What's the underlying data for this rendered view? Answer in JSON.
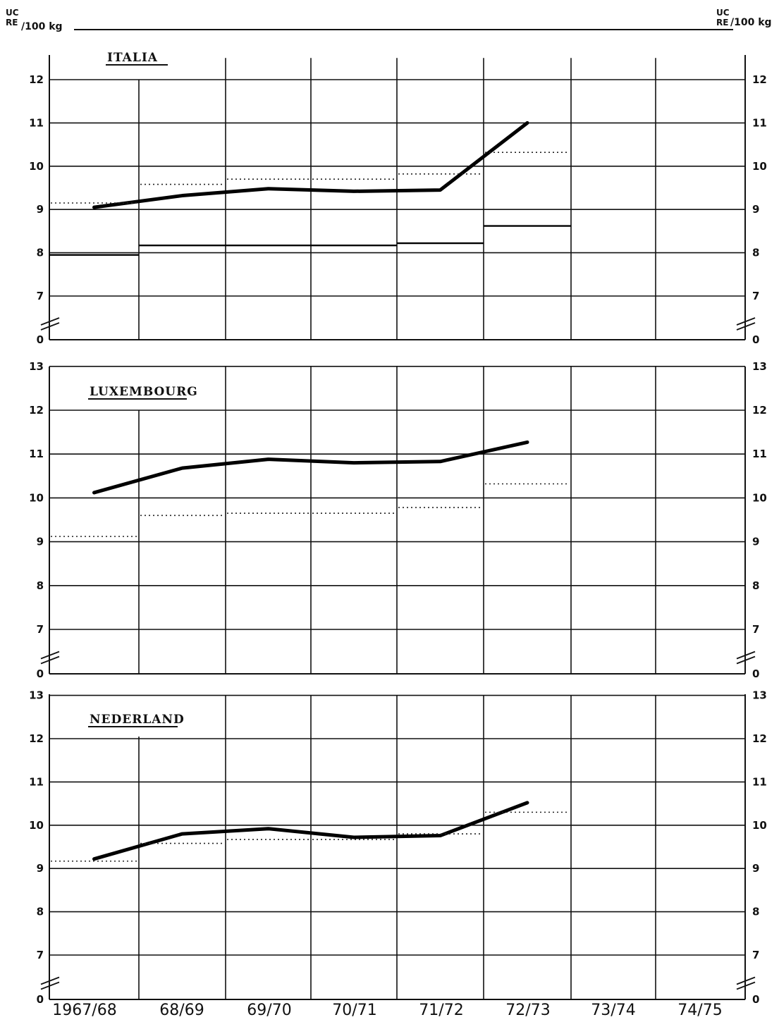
{
  "units": {
    "top": "UC",
    "bottom": "RE",
    "rest": "/100 kg"
  },
  "x_tick_labels": [
    "1967/68",
    "68/69",
    "69/70",
    "70/71",
    "71/72",
    "72/73",
    "73/74",
    "74/75"
  ],
  "chart_data": [
    {
      "type": "line",
      "title": "ITALIA",
      "x": [
        "1967/68",
        "68/69",
        "69/70",
        "70/71",
        "71/72",
        "72/73",
        "73/74",
        "74/75"
      ],
      "ylim": [
        0,
        12.5
      ],
      "axis_break": [
        0,
        6.5
      ],
      "y_ticks": [
        0,
        7,
        8,
        9,
        10,
        11,
        12
      ],
      "grid": true,
      "series": [
        {
          "style": "thick-solid",
          "points": [
            [
              "1967/68",
              9.05
            ],
            [
              "68/69",
              9.32
            ],
            [
              "69/70",
              9.48
            ],
            [
              "70/71",
              9.42
            ],
            [
              "71/72",
              9.45
            ],
            [
              "72/73",
              11.0
            ]
          ]
        },
        {
          "style": "dotted-step",
          "values": [
            9.15,
            9.58,
            9.7,
            9.7,
            9.82,
            10.32,
            null,
            null
          ]
        },
        {
          "style": "thin-solid-step",
          "values": [
            7.95,
            8.17,
            8.17,
            8.17,
            8.22,
            8.62,
            null,
            null
          ]
        }
      ]
    },
    {
      "type": "line",
      "title": "LUXEMBOURG",
      "x": [
        "1967/68",
        "68/69",
        "69/70",
        "70/71",
        "71/72",
        "72/73",
        "73/74",
        "74/75"
      ],
      "ylim": [
        0,
        13
      ],
      "axis_break": [
        0,
        6.5
      ],
      "y_ticks": [
        0,
        7,
        8,
        9,
        10,
        11,
        12,
        13
      ],
      "grid": true,
      "series": [
        {
          "style": "thick-solid",
          "points": [
            [
              "1967/68",
              10.12
            ],
            [
              "68/69",
              10.68
            ],
            [
              "69/70",
              10.88
            ],
            [
              "70/71",
              10.8
            ],
            [
              "71/72",
              10.83
            ],
            [
              "72/73",
              11.27
            ]
          ]
        },
        {
          "style": "dotted-step",
          "values": [
            9.12,
            9.6,
            9.65,
            9.65,
            9.78,
            10.32,
            null,
            null
          ]
        }
      ]
    },
    {
      "type": "line",
      "title": "NEDERLAND",
      "x": [
        "1967/68",
        "68/69",
        "69/70",
        "70/71",
        "71/72",
        "72/73",
        "73/74",
        "74/75"
      ],
      "ylim": [
        0,
        13
      ],
      "axis_break": [
        0,
        6.5
      ],
      "y_ticks": [
        0,
        7,
        8,
        9,
        10,
        11,
        12,
        13
      ],
      "grid": true,
      "series": [
        {
          "style": "thick-solid",
          "points": [
            [
              "1967/68",
              9.22
            ],
            [
              "68/69",
              9.8
            ],
            [
              "69/70",
              9.92
            ],
            [
              "70/71",
              9.72
            ],
            [
              "71/72",
              9.76
            ],
            [
              "72/73",
              10.52
            ]
          ]
        },
        {
          "style": "dotted-step",
          "values": [
            9.17,
            9.58,
            9.67,
            9.67,
            9.8,
            10.3,
            null,
            null
          ]
        }
      ]
    }
  ]
}
